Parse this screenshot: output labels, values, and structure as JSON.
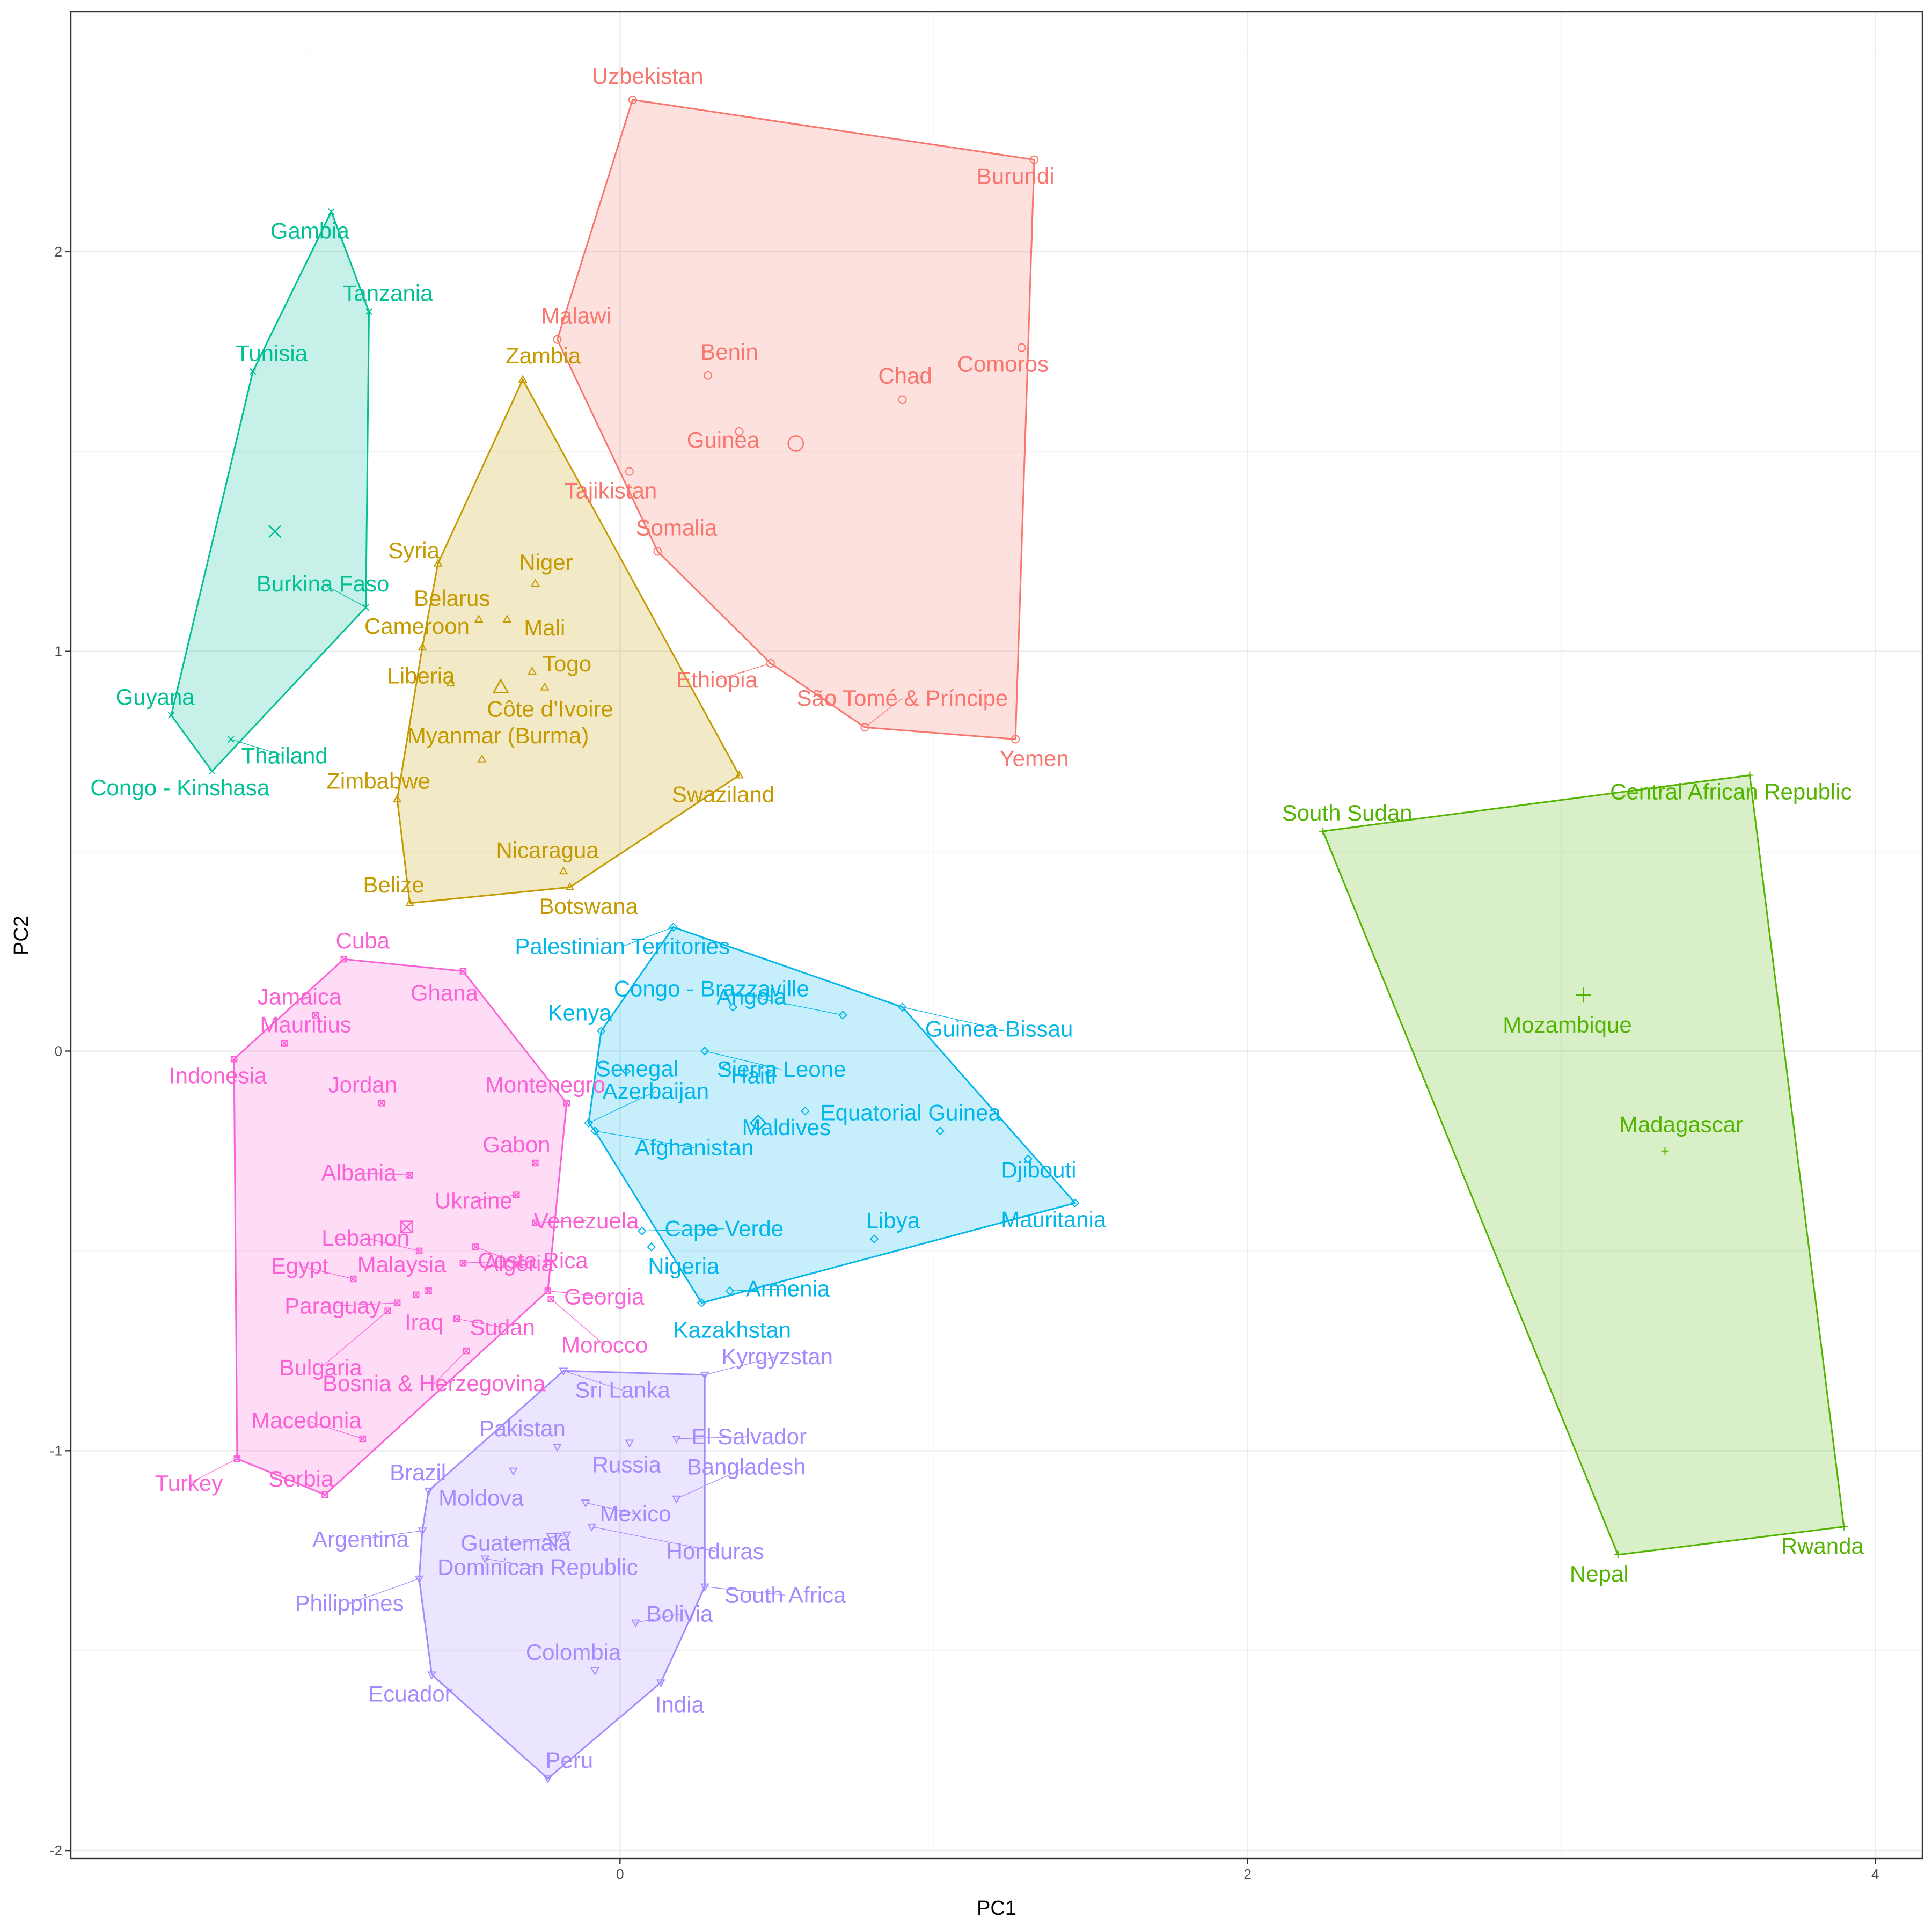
{
  "chart_data": {
    "type": "scatter",
    "xlabel": "PC1",
    "ylabel": "PC2",
    "xlim": [
      -1.75,
      4.15
    ],
    "ylim": [
      -2.02,
      2.6
    ],
    "x_ticks": [
      0,
      2,
      4
    ],
    "x_tick_labels": [
      "0",
      "2",
      "4"
    ],
    "y_ticks": [
      -2,
      -1,
      0,
      1,
      2
    ],
    "y_tick_labels": [
      "-2",
      "-1",
      "0",
      "1",
      "2"
    ],
    "grid": true,
    "legend": "none",
    "series": [
      {
        "color": "#F8766D",
        "shape": "circle",
        "centroid": [
          0.56,
          1.52
        ],
        "hull": [
          "Uzbekistan",
          "Burundi",
          "Yemen",
          "São Tomé & Príncipe",
          "Ethiopia",
          "Somalia",
          "Malawi"
        ],
        "points": [
          {
            "label": "Uzbekistan",
            "x": 0.04,
            "y": 2.38
          },
          {
            "label": "Burundi",
            "x": 1.32,
            "y": 2.23
          },
          {
            "label": "Malawi",
            "x": -0.2,
            "y": 1.78
          },
          {
            "label": "Comoros",
            "x": 1.28,
            "y": 1.76
          },
          {
            "label": "Benin",
            "x": 0.28,
            "y": 1.69
          },
          {
            "label": "Chad",
            "x": 0.9,
            "y": 1.63
          },
          {
            "label": "Guinea",
            "x": 0.38,
            "y": 1.55
          },
          {
            "label": "Tajikistan",
            "x": 0.03,
            "y": 1.45
          },
          {
            "label": "Somalia",
            "x": 0.12,
            "y": 1.25
          },
          {
            "label": "Ethiopia",
            "x": 0.48,
            "y": 0.97
          },
          {
            "label": "São Tomé & Príncipe",
            "x": 0.78,
            "y": 0.81
          },
          {
            "label": "Yemen",
            "x": 1.26,
            "y": 0.78
          }
        ]
      },
      {
        "color": "#C49A00",
        "shape": "triangle",
        "centroid": [
          -0.38,
          0.91
        ],
        "hull": [
          "Zambia",
          "Swaziland",
          "Botswana",
          "Belize",
          "Zimbabwe",
          "Cameroon",
          "Syria"
        ],
        "points": [
          {
            "label": "Zambia",
            "x": -0.31,
            "y": 1.68
          },
          {
            "label": "Syria",
            "x": -0.58,
            "y": 1.22
          },
          {
            "label": "Niger",
            "x": -0.27,
            "y": 1.17
          },
          {
            "label": "Belarus",
            "x": -0.45,
            "y": 1.08
          },
          {
            "label": "Mali",
            "x": -0.36,
            "y": 1.08
          },
          {
            "label": "Cameroon",
            "x": -0.63,
            "y": 1.01
          },
          {
            "label": "Togo",
            "x": -0.28,
            "y": 0.95
          },
          {
            "label": "Liberia",
            "x": -0.54,
            "y": 0.92
          },
          {
            "label": "Côte d’Ivoire",
            "x": -0.24,
            "y": 0.91
          },
          {
            "label": "Myanmar (Burma)",
            "x": -0.44,
            "y": 0.73
          },
          {
            "label": "Swaziland",
            "x": 0.38,
            "y": 0.69
          },
          {
            "label": "Zimbabwe",
            "x": -0.71,
            "y": 0.63
          },
          {
            "label": "Nicaragua",
            "x": -0.18,
            "y": 0.45
          },
          {
            "label": "Botswana",
            "x": -0.16,
            "y": 0.41
          },
          {
            "label": "Belize",
            "x": -0.67,
            "y": 0.37
          }
        ]
      },
      {
        "color": "#53B400",
        "shape": "plus",
        "centroid": [
          3.07,
          0.14
        ],
        "hull": [
          "Central African Republic",
          "Rwanda",
          "Nepal",
          "South Sudan"
        ],
        "points": [
          {
            "label": "Central African Republic",
            "x": 3.6,
            "y": 0.69
          },
          {
            "label": "South Sudan",
            "x": 2.24,
            "y": 0.55
          },
          {
            "label": "Mozambique",
            "x": 3.07,
            "y": 0.14
          },
          {
            "label": "Madagascar",
            "x": 3.33,
            "y": -0.25
          },
          {
            "label": "Rwanda",
            "x": 3.9,
            "y": -1.19
          },
          {
            "label": "Nepal",
            "x": 3.18,
            "y": -1.26
          }
        ]
      },
      {
        "color": "#00C094",
        "shape": "x",
        "centroid": [
          -1.1,
          1.3
        ],
        "hull": [
          "Gambia",
          "Tanzania",
          "Burkina Faso",
          "Congo - Kinshasa",
          "Guyana",
          "Tunisia"
        ],
        "points": [
          {
            "label": "Gambia",
            "x": -0.92,
            "y": 2.1
          },
          {
            "label": "Tanzania",
            "x": -0.8,
            "y": 1.85
          },
          {
            "label": "Tunisia",
            "x": -1.17,
            "y": 1.7
          },
          {
            "label": "Burkina Faso",
            "x": -0.81,
            "y": 1.11
          },
          {
            "label": "Guyana",
            "x": -1.43,
            "y": 0.84
          },
          {
            "label": "Thailand",
            "x": -1.24,
            "y": 0.78
          },
          {
            "label": "Congo - Kinshasa",
            "x": -1.3,
            "y": 0.7
          }
        ]
      },
      {
        "color": "#00B6EB",
        "shape": "diamond",
        "centroid": [
          0.44,
          -0.18
        ],
        "hull": [
          "Palestinian Territories",
          "Guinea-Bissau",
          "Mauritania",
          "Kazakhstan",
          "Afghanistan",
          "Azerbaijan",
          "Kenya"
        ],
        "points": [
          {
            "label": "Palestinian Territories",
            "x": 0.17,
            "y": 0.31
          },
          {
            "label": "Congo - Brazzaville",
            "x": 0.36,
            "y": 0.11
          },
          {
            "label": "Guinea-Bissau",
            "x": 0.9,
            "y": 0.11
          },
          {
            "label": "Angola",
            "x": 0.71,
            "y": 0.09
          },
          {
            "label": "Kenya",
            "x": -0.06,
            "y": 0.05
          },
          {
            "label": "Sierra Leone",
            "x": 0.27,
            "y": 0.0
          },
          {
            "label": "Senegal",
            "x": 0.02,
            "y": -0.05
          },
          {
            "label": "Haiti",
            "x": 0.34,
            "y": -0.04
          },
          {
            "label": "Maldives",
            "x": 0.59,
            "y": -0.15
          },
          {
            "label": "Azerbaijan",
            "x": -0.1,
            "y": -0.18
          },
          {
            "label": "Afghanistan",
            "x": -0.08,
            "y": -0.2
          },
          {
            "label": "Equatorial Guinea",
            "x": 1.02,
            "y": -0.2
          },
          {
            "label": "Djibouti",
            "x": 1.3,
            "y": -0.27
          },
          {
            "label": "Mauritania",
            "x": 1.45,
            "y": -0.38
          },
          {
            "label": "Cape Verde",
            "x": 0.07,
            "y": -0.45
          },
          {
            "label": "Libya",
            "x": 0.81,
            "y": -0.47
          },
          {
            "label": "Nigeria",
            "x": 0.1,
            "y": -0.49
          },
          {
            "label": "Armenia",
            "x": 0.35,
            "y": -0.6
          },
          {
            "label": "Kazakhstan",
            "x": 0.26,
            "y": -0.63
          }
        ]
      },
      {
        "color": "#A58AFF",
        "shape": "triangle-down",
        "centroid": [
          -0.21,
          -1.22
        ],
        "hull": [
          "Sri Lanka",
          "Kyrgyzstan",
          "South Africa",
          "India",
          "Peru",
          "Ecuador",
          "Philippines",
          "Argentina",
          "Brazil"
        ],
        "points": [
          {
            "label": "Sri Lanka",
            "x": -0.18,
            "y": -0.8
          },
          {
            "label": "Kyrgyzstan",
            "x": 0.27,
            "y": -0.81
          },
          {
            "label": "El Salvador",
            "x": 0.18,
            "y": -0.97
          },
          {
            "label": "Russia",
            "x": 0.03,
            "y": -0.98
          },
          {
            "label": "Pakistan",
            "x": -0.2,
            "y": -0.99
          },
          {
            "label": "Moldova",
            "x": -0.34,
            "y": -1.05
          },
          {
            "label": "Brazil",
            "x": -0.61,
            "y": -1.1
          },
          {
            "label": "Bangladesh",
            "x": 0.18,
            "y": -1.12
          },
          {
            "label": "Mexico",
            "x": -0.11,
            "y": -1.13
          },
          {
            "label": "Honduras",
            "x": -0.09,
            "y": -1.19
          },
          {
            "label": "Argentina",
            "x": -0.63,
            "y": -1.2
          },
          {
            "label": "Guatemala",
            "x": -0.17,
            "y": -1.21
          },
          {
            "label": "Dominican Republic",
            "x": -0.43,
            "y": -1.27
          },
          {
            "label": "Philippines",
            "x": -0.64,
            "y": -1.32
          },
          {
            "label": "South Africa",
            "x": 0.27,
            "y": -1.34
          },
          {
            "label": "Bolivia",
            "x": 0.05,
            "y": -1.43
          },
          {
            "label": "Colombia",
            "x": -0.08,
            "y": -1.55
          },
          {
            "label": "Ecuador",
            "x": -0.6,
            "y": -1.56
          },
          {
            "label": "India",
            "x": 0.13,
            "y": -1.58
          },
          {
            "label": "Peru",
            "x": -0.23,
            "y": -1.82
          }
        ]
      },
      {
        "color": "#FB61D7",
        "shape": "square-cross",
        "centroid": [
          -0.68,
          -0.44
        ],
        "hull": [
          "Cuba",
          "Ghana",
          "Montenegro",
          "Georgia",
          "Serbia",
          "Turkey",
          "Indonesia"
        ],
        "points": [
          {
            "label": "Cuba",
            "x": -0.88,
            "y": 0.23
          },
          {
            "label": "Ghana",
            "x": -0.5,
            "y": 0.2
          },
          {
            "label": "Jamaica",
            "x": -0.97,
            "y": 0.09
          },
          {
            "label": "Mauritius",
            "x": -1.07,
            "y": 0.02
          },
          {
            "label": "Indonesia",
            "x": -1.23,
            "y": -0.02
          },
          {
            "label": "Jordan",
            "x": -0.76,
            "y": -0.13
          },
          {
            "label": "Montenegro",
            "x": -0.17,
            "y": -0.13
          },
          {
            "label": "Gabon",
            "x": -0.27,
            "y": -0.28
          },
          {
            "label": "Albania",
            "x": -0.67,
            "y": -0.31
          },
          {
            "label": "Ukraine",
            "x": -0.33,
            "y": -0.36
          },
          {
            "label": "Venezuela",
            "x": -0.27,
            "y": -0.43
          },
          {
            "label": "Algeria",
            "x": -0.46,
            "y": -0.49
          },
          {
            "label": "Lebanon",
            "x": -0.64,
            "y": -0.5
          },
          {
            "label": "Costa Rica",
            "x": -0.5,
            "y": -0.53
          },
          {
            "label": "Egypt",
            "x": -0.85,
            "y": -0.57
          },
          {
            "label": "Malaysia",
            "x": -0.61,
            "y": -0.6
          },
          {
            "label": "Georgia",
            "x": -0.23,
            "y": -0.6
          },
          {
            "label": "Morocco",
            "x": -0.22,
            "y": -0.62
          },
          {
            "label": "Paraguay",
            "x": -0.71,
            "y": -0.63
          },
          {
            "label": "Iraq",
            "x": -0.65,
            "y": -0.61
          },
          {
            "label": "Sudan",
            "x": -0.52,
            "y": -0.67
          },
          {
            "label": "Bulgaria",
            "x": -0.74,
            "y": -0.65
          },
          {
            "label": "Bosnia & Herzegovina",
            "x": -0.49,
            "y": -0.75
          },
          {
            "label": "Macedonia",
            "x": -0.82,
            "y": -0.97
          },
          {
            "label": "Turkey",
            "x": -1.22,
            "y": -1.02
          },
          {
            "label": "Serbia",
            "x": -0.94,
            "y": -1.11
          }
        ]
      }
    ]
  }
}
